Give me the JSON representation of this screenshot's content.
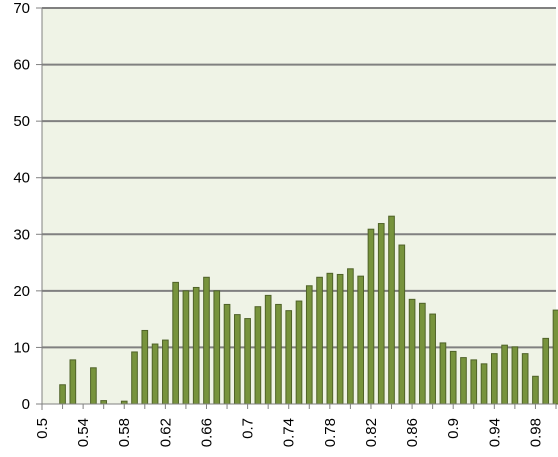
{
  "colors": {
    "plot_bg": "#EFF3E6",
    "grid": "#808080",
    "axis": "#808080",
    "bar_fill": "#77933C",
    "bar_edge": "#4F6228",
    "text": "#000000"
  },
  "chart_data": {
    "type": "bar",
    "title": "",
    "xlabel": "",
    "ylabel": "",
    "ylim": [
      0,
      70
    ],
    "yticks": [
      "0",
      "10",
      "20",
      "30",
      "40",
      "50",
      "60",
      "70"
    ],
    "xlim": [
      0.5,
      1.0
    ],
    "xticks": [
      "0.5",
      "0.54",
      "0.58",
      "0.62",
      "0.66",
      "0.7",
      "0.74",
      "0.78",
      "0.82",
      "0.86",
      "0.9",
      "0.94",
      "0.98"
    ],
    "grid": true,
    "legend": "none",
    "x": [
      0.5,
      0.51,
      0.52,
      0.53,
      0.54,
      0.55,
      0.56,
      0.57,
      0.58,
      0.59,
      0.6,
      0.61,
      0.62,
      0.63,
      0.64,
      0.65,
      0.66,
      0.67,
      0.68,
      0.69,
      0.7,
      0.71,
      0.72,
      0.73,
      0.74,
      0.75,
      0.76,
      0.77,
      0.78,
      0.79,
      0.8,
      0.81,
      0.82,
      0.83,
      0.84,
      0.85,
      0.86,
      0.87,
      0.88,
      0.89,
      0.9,
      0.91,
      0.92,
      0.93,
      0.94,
      0.95,
      0.96,
      0.97,
      0.98,
      0.99,
      1.0
    ],
    "values": [
      0,
      0,
      3.4,
      7.8,
      0,
      6.4,
      0.6,
      0,
      0.5,
      9.2,
      13,
      10.6,
      11.3,
      21.5,
      20,
      20.6,
      22.4,
      20,
      17.6,
      15.8,
      15.1,
      17.2,
      19.2,
      17.6,
      16.5,
      18.2,
      20.9,
      22.4,
      23.1,
      22.9,
      23.9,
      22.6,
      30.9,
      31.9,
      33.2,
      28.1,
      18.5,
      17.8,
      15.9,
      10.8,
      9.3,
      8.2,
      7.8,
      7.1,
      8.9,
      10.4,
      10.1,
      8.9,
      4.9,
      11.6,
      16.6
    ]
  }
}
